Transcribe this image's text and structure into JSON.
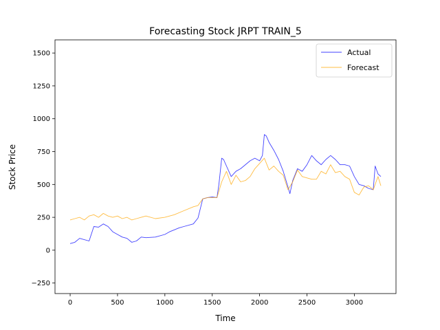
{
  "chart_data": {
    "type": "line",
    "title": "Forecasting Stock JRPT TRAIN_5",
    "xlabel": "Time",
    "ylabel": "Stock Price",
    "xlim": [
      -160,
      3440
    ],
    "ylim": [
      -330,
      1600
    ],
    "xticks": [
      0,
      500,
      1000,
      1500,
      2000,
      2500,
      3000
    ],
    "yticks": [
      -250,
      0,
      250,
      500,
      750,
      1000,
      1250,
      1500
    ],
    "xtick_labels": [
      "0",
      "500",
      "1000",
      "1500",
      "2000",
      "2500",
      "3000"
    ],
    "ytick_labels": [
      "−250",
      "0",
      "250",
      "500",
      "750",
      "1000",
      "1250",
      "1500"
    ],
    "grid": false,
    "legend_position": "top-right",
    "series": [
      {
        "name": "Actual",
        "color": "#0000ff",
        "x": [
          0,
          50,
          100,
          200,
          250,
          300,
          350,
          400,
          450,
          500,
          550,
          600,
          650,
          700,
          750,
          800,
          900,
          1000,
          1050,
          1100,
          1150,
          1200,
          1300,
          1350,
          1400,
          1450,
          1500,
          1550,
          1570,
          1600,
          1620,
          1650,
          1700,
          1750,
          1800,
          1850,
          1900,
          1950,
          2000,
          2030,
          2050,
          2070,
          2100,
          2150,
          2200,
          2250,
          2300,
          2320,
          2350,
          2400,
          2450,
          2500,
          2550,
          2600,
          2650,
          2700,
          2750,
          2800,
          2850,
          2900,
          2950,
          3000,
          3050,
          3100,
          3150,
          3200,
          3220,
          3250,
          3280
        ],
        "y": [
          50,
          60,
          90,
          70,
          180,
          175,
          200,
          180,
          140,
          120,
          100,
          90,
          60,
          70,
          100,
          95,
          100,
          120,
          140,
          155,
          170,
          180,
          200,
          245,
          390,
          400,
          405,
          400,
          500,
          700,
          690,
          640,
          560,
          600,
          620,
          650,
          680,
          700,
          680,
          720,
          880,
          870,
          820,
          760,
          690,
          600,
          480,
          430,
          530,
          620,
          600,
          650,
          720,
          680,
          650,
          690,
          720,
          690,
          650,
          650,
          640,
          560,
          500,
          490,
          470,
          460,
          640,
          580,
          560
        ]
      },
      {
        "name": "Forecast",
        "color": "#ffa500",
        "x": [
          0,
          50,
          100,
          150,
          200,
          250,
          300,
          350,
          400,
          450,
          500,
          550,
          600,
          650,
          700,
          750,
          800,
          900,
          1000,
          1100,
          1200,
          1300,
          1350,
          1400,
          1450,
          1500,
          1550,
          1600,
          1650,
          1700,
          1750,
          1800,
          1850,
          1900,
          1950,
          2000,
          2050,
          2100,
          2150,
          2200,
          2250,
          2300,
          2350,
          2400,
          2450,
          2500,
          2550,
          2600,
          2650,
          2700,
          2750,
          2800,
          2850,
          2900,
          2950,
          3000,
          3050,
          3100,
          3150,
          3200,
          3250,
          3280
        ],
        "y": [
          230,
          240,
          250,
          230,
          260,
          270,
          250,
          280,
          260,
          250,
          260,
          240,
          250,
          230,
          240,
          250,
          260,
          240,
          250,
          270,
          300,
          330,
          340,
          390,
          400,
          400,
          400,
          520,
          600,
          500,
          570,
          520,
          530,
          560,
          620,
          660,
          700,
          610,
          640,
          600,
          570,
          460,
          520,
          610,
          560,
          550,
          540,
          540,
          600,
          580,
          650,
          590,
          600,
          560,
          540,
          440,
          420,
          480,
          490,
          460,
          560,
          490
        ]
      }
    ]
  }
}
